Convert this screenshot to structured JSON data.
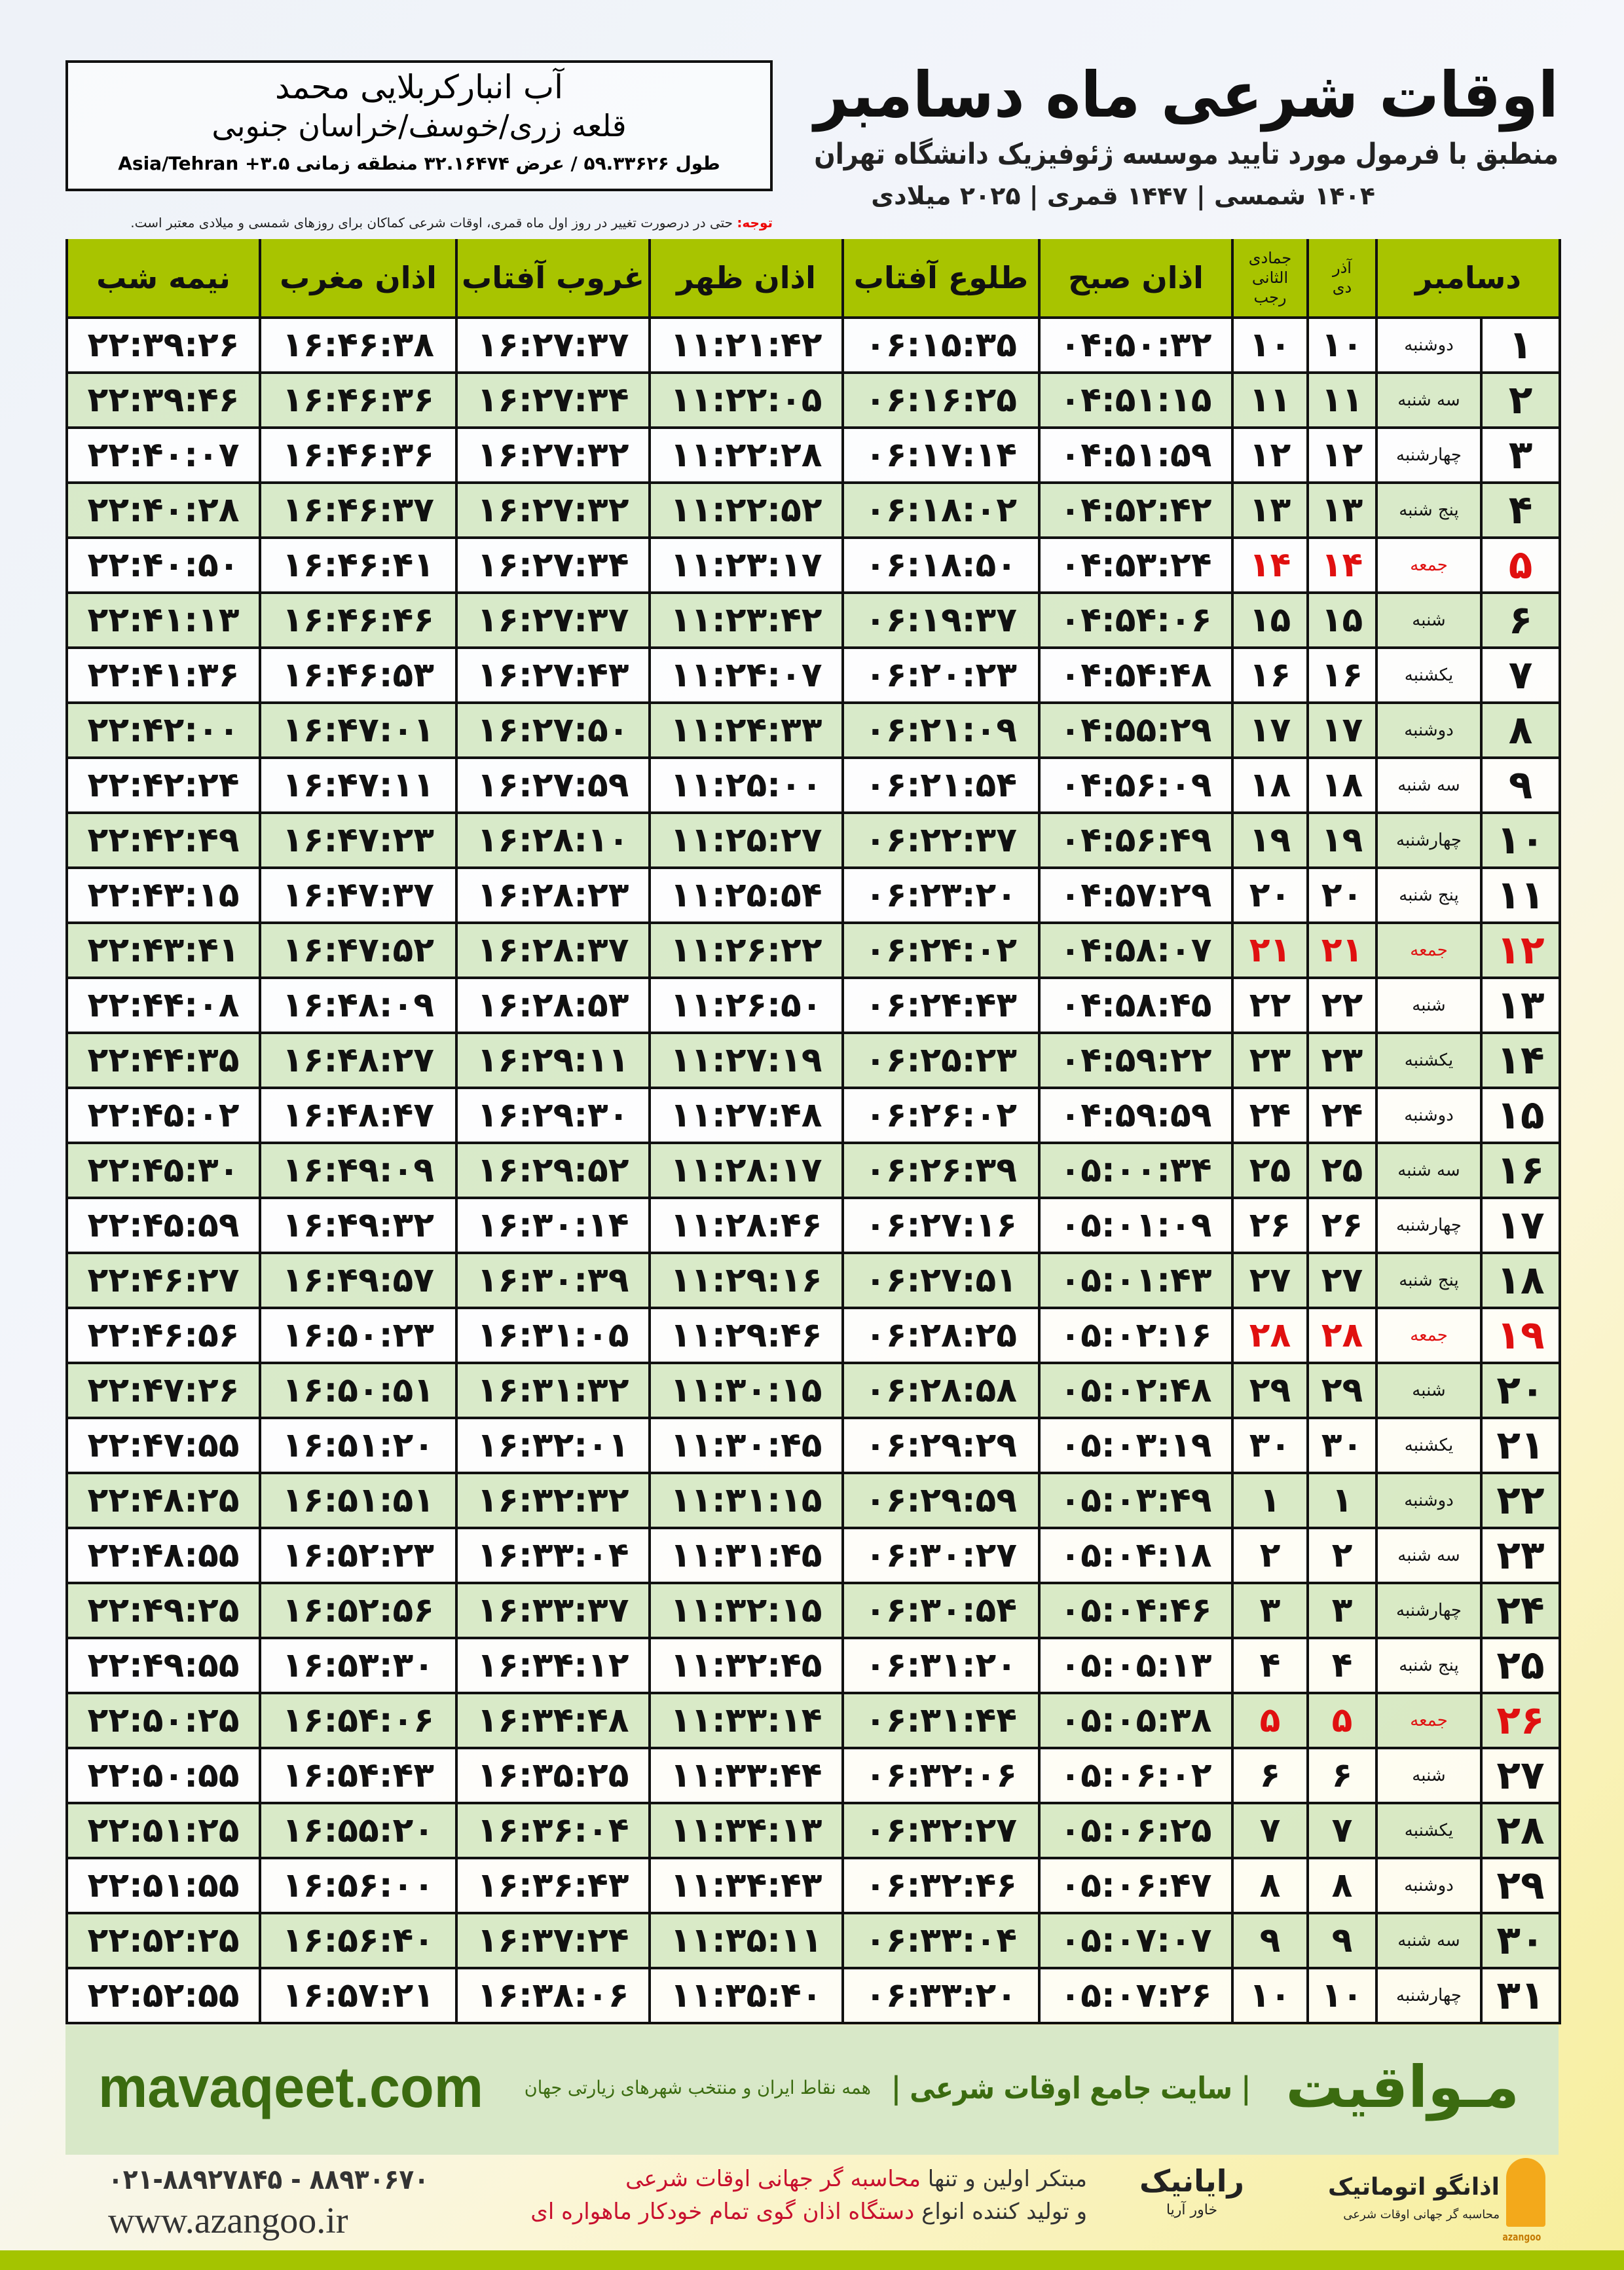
{
  "header": {
    "title": "اوقات شرعی ماه دسامبر",
    "subtitle": "منطبق با فرمول مورد تایید موسسه ژئوفیزیک دانشگاه تهران",
    "dates": "۱۴۰۴ شمسی | ۱۴۴۷ قمری | ۲۰۲۵ میلادی"
  },
  "location": {
    "name": "آب انبارکربلایی محمد",
    "region": "قلعه زری/خوسف/خراسان جنوبی",
    "coords": "طول ۵۹.۳۳۶۲۶ / عرض ۳۲.۱۶۴۷۴ منطقه زمانی ۳.۵+ Asia/Tehran"
  },
  "note": {
    "label": "توجه:",
    "text": " حتی در درصورت تغییر در روز اول ماه قمری، اوقات شرعی کماکان برای روزهای شمسی و میلادی معتبر است."
  },
  "table": {
    "headers": {
      "month": "دسامبر",
      "shamsi_top": "آذر",
      "shamsi_bottom": "دی",
      "hijri_top": "جمادی الثانی",
      "hijri_bottom": "رجب",
      "fajr": "اذان صبح",
      "sunrise": "طلوع آفتاب",
      "dhuhr": "اذان ظهر",
      "sunset": "غروب آفتاب",
      "maghrib": "اذان مغرب",
      "midnight": "نیمه شب"
    },
    "rows": [
      [
        "۱",
        "دوشنبه",
        "۱۰",
        "۱۰",
        "۰۴:۵۰:۳۲",
        "۰۶:۱۵:۳۵",
        "۱۱:۲۱:۴۲",
        "۱۶:۲۷:۳۷",
        "۱۶:۴۶:۳۸",
        "۲۲:۳۹:۲۶"
      ],
      [
        "۲",
        "سه شنبه",
        "۱۱",
        "۱۱",
        "۰۴:۵۱:۱۵",
        "۰۶:۱۶:۲۵",
        "۱۱:۲۲:۰۵",
        "۱۶:۲۷:۳۴",
        "۱۶:۴۶:۳۶",
        "۲۲:۳۹:۴۶"
      ],
      [
        "۳",
        "چهارشنبه",
        "۱۲",
        "۱۲",
        "۰۴:۵۱:۵۹",
        "۰۶:۱۷:۱۴",
        "۱۱:۲۲:۲۸",
        "۱۶:۲۷:۳۲",
        "۱۶:۴۶:۳۶",
        "۲۲:۴۰:۰۷"
      ],
      [
        "۴",
        "پنج شنبه",
        "۱۳",
        "۱۳",
        "۰۴:۵۲:۴۲",
        "۰۶:۱۸:۰۲",
        "۱۱:۲۲:۵۲",
        "۱۶:۲۷:۳۲",
        "۱۶:۴۶:۳۷",
        "۲۲:۴۰:۲۸"
      ],
      [
        "۵",
        "جمعه",
        "۱۴",
        "۱۴",
        "۰۴:۵۳:۲۴",
        "۰۶:۱۸:۵۰",
        "۱۱:۲۳:۱۷",
        "۱۶:۲۷:۳۴",
        "۱۶:۴۶:۴۱",
        "۲۲:۴۰:۵۰"
      ],
      [
        "۶",
        "شنبه",
        "۱۵",
        "۱۵",
        "۰۴:۵۴:۰۶",
        "۰۶:۱۹:۳۷",
        "۱۱:۲۳:۴۲",
        "۱۶:۲۷:۳۷",
        "۱۶:۴۶:۴۶",
        "۲۲:۴۱:۱۳"
      ],
      [
        "۷",
        "یکشنبه",
        "۱۶",
        "۱۶",
        "۰۴:۵۴:۴۸",
        "۰۶:۲۰:۲۳",
        "۱۱:۲۴:۰۷",
        "۱۶:۲۷:۴۳",
        "۱۶:۴۶:۵۳",
        "۲۲:۴۱:۳۶"
      ],
      [
        "۸",
        "دوشنبه",
        "۱۷",
        "۱۷",
        "۰۴:۵۵:۲۹",
        "۰۶:۲۱:۰۹",
        "۱۱:۲۴:۳۳",
        "۱۶:۲۷:۵۰",
        "۱۶:۴۷:۰۱",
        "۲۲:۴۲:۰۰"
      ],
      [
        "۹",
        "سه شنبه",
        "۱۸",
        "۱۸",
        "۰۴:۵۶:۰۹",
        "۰۶:۲۱:۵۴",
        "۱۱:۲۵:۰۰",
        "۱۶:۲۷:۵۹",
        "۱۶:۴۷:۱۱",
        "۲۲:۴۲:۲۴"
      ],
      [
        "۱۰",
        "چهارشنبه",
        "۱۹",
        "۱۹",
        "۰۴:۵۶:۴۹",
        "۰۶:۲۲:۳۷",
        "۱۱:۲۵:۲۷",
        "۱۶:۲۸:۱۰",
        "۱۶:۴۷:۲۳",
        "۲۲:۴۲:۴۹"
      ],
      [
        "۱۱",
        "پنج شنبه",
        "۲۰",
        "۲۰",
        "۰۴:۵۷:۲۹",
        "۰۶:۲۳:۲۰",
        "۱۱:۲۵:۵۴",
        "۱۶:۲۸:۲۳",
        "۱۶:۴۷:۳۷",
        "۲۲:۴۳:۱۵"
      ],
      [
        "۱۲",
        "جمعه",
        "۲۱",
        "۲۱",
        "۰۴:۵۸:۰۷",
        "۰۶:۲۴:۰۲",
        "۱۱:۲۶:۲۲",
        "۱۶:۲۸:۳۷",
        "۱۶:۴۷:۵۲",
        "۲۲:۴۳:۴۱"
      ],
      [
        "۱۳",
        "شنبه",
        "۲۲",
        "۲۲",
        "۰۴:۵۸:۴۵",
        "۰۶:۲۴:۴۳",
        "۱۱:۲۶:۵۰",
        "۱۶:۲۸:۵۳",
        "۱۶:۴۸:۰۹",
        "۲۲:۴۴:۰۸"
      ],
      [
        "۱۴",
        "یکشنبه",
        "۲۳",
        "۲۳",
        "۰۴:۵۹:۲۲",
        "۰۶:۲۵:۲۳",
        "۱۱:۲۷:۱۹",
        "۱۶:۲۹:۱۱",
        "۱۶:۴۸:۲۷",
        "۲۲:۴۴:۳۵"
      ],
      [
        "۱۵",
        "دوشنبه",
        "۲۴",
        "۲۴",
        "۰۴:۵۹:۵۹",
        "۰۶:۲۶:۰۲",
        "۱۱:۲۷:۴۸",
        "۱۶:۲۹:۳۰",
        "۱۶:۴۸:۴۷",
        "۲۲:۴۵:۰۲"
      ],
      [
        "۱۶",
        "سه شنبه",
        "۲۵",
        "۲۵",
        "۰۵:۰۰:۳۴",
        "۰۶:۲۶:۳۹",
        "۱۱:۲۸:۱۷",
        "۱۶:۲۹:۵۲",
        "۱۶:۴۹:۰۹",
        "۲۲:۴۵:۳۰"
      ],
      [
        "۱۷",
        "چهارشنبه",
        "۲۶",
        "۲۶",
        "۰۵:۰۱:۰۹",
        "۰۶:۲۷:۱۶",
        "۱۱:۲۸:۴۶",
        "۱۶:۳۰:۱۴",
        "۱۶:۴۹:۳۲",
        "۲۲:۴۵:۵۹"
      ],
      [
        "۱۸",
        "پنج شنبه",
        "۲۷",
        "۲۷",
        "۰۵:۰۱:۴۳",
        "۰۶:۲۷:۵۱",
        "۱۱:۲۹:۱۶",
        "۱۶:۳۰:۳۹",
        "۱۶:۴۹:۵۷",
        "۲۲:۴۶:۲۷"
      ],
      [
        "۱۹",
        "جمعه",
        "۲۸",
        "۲۸",
        "۰۵:۰۲:۱۶",
        "۰۶:۲۸:۲۵",
        "۱۱:۲۹:۴۶",
        "۱۶:۳۱:۰۵",
        "۱۶:۵۰:۲۳",
        "۲۲:۴۶:۵۶"
      ],
      [
        "۲۰",
        "شنبه",
        "۲۹",
        "۲۹",
        "۰۵:۰۲:۴۸",
        "۰۶:۲۸:۵۸",
        "۱۱:۳۰:۱۵",
        "۱۶:۳۱:۳۲",
        "۱۶:۵۰:۵۱",
        "۲۲:۴۷:۲۶"
      ],
      [
        "۲۱",
        "یکشنبه",
        "۳۰",
        "۳۰",
        "۰۵:۰۳:۱۹",
        "۰۶:۲۹:۲۹",
        "۱۱:۳۰:۴۵",
        "۱۶:۳۲:۰۱",
        "۱۶:۵۱:۲۰",
        "۲۲:۴۷:۵۵"
      ],
      [
        "۲۲",
        "دوشنبه",
        "۱",
        "۱",
        "۰۵:۰۳:۴۹",
        "۰۶:۲۹:۵۹",
        "۱۱:۳۱:۱۵",
        "۱۶:۳۲:۳۲",
        "۱۶:۵۱:۵۱",
        "۲۲:۴۸:۲۵"
      ],
      [
        "۲۳",
        "سه شنبه",
        "۲",
        "۲",
        "۰۵:۰۴:۱۸",
        "۰۶:۳۰:۲۷",
        "۱۱:۳۱:۴۵",
        "۱۶:۳۳:۰۴",
        "۱۶:۵۲:۲۳",
        "۲۲:۴۸:۵۵"
      ],
      [
        "۲۴",
        "چهارشنبه",
        "۳",
        "۳",
        "۰۵:۰۴:۴۶",
        "۰۶:۳۰:۵۴",
        "۱۱:۳۲:۱۵",
        "۱۶:۳۳:۳۷",
        "۱۶:۵۲:۵۶",
        "۲۲:۴۹:۲۵"
      ],
      [
        "۲۵",
        "پنج شنبه",
        "۴",
        "۴",
        "۰۵:۰۵:۱۳",
        "۰۶:۳۱:۲۰",
        "۱۱:۳۲:۴۵",
        "۱۶:۳۴:۱۲",
        "۱۶:۵۳:۳۰",
        "۲۲:۴۹:۵۵"
      ],
      [
        "۲۶",
        "جمعه",
        "۵",
        "۵",
        "۰۵:۰۵:۳۸",
        "۰۶:۳۱:۴۴",
        "۱۱:۳۳:۱۴",
        "۱۶:۳۴:۴۸",
        "۱۶:۵۴:۰۶",
        "۲۲:۵۰:۲۵"
      ],
      [
        "۲۷",
        "شنبه",
        "۶",
        "۶",
        "۰۵:۰۶:۰۲",
        "۰۶:۳۲:۰۶",
        "۱۱:۳۳:۴۴",
        "۱۶:۳۵:۲۵",
        "۱۶:۵۴:۴۳",
        "۲۲:۵۰:۵۵"
      ],
      [
        "۲۸",
        "یکشنبه",
        "۷",
        "۷",
        "۰۵:۰۶:۲۵",
        "۰۶:۳۲:۲۷",
        "۱۱:۳۴:۱۳",
        "۱۶:۳۶:۰۴",
        "۱۶:۵۵:۲۰",
        "۲۲:۵۱:۲۵"
      ],
      [
        "۲۹",
        "دوشنبه",
        "۸",
        "۸",
        "۰۵:۰۶:۴۷",
        "۰۶:۳۲:۴۶",
        "۱۱:۳۴:۴۳",
        "۱۶:۳۶:۴۳",
        "۱۶:۵۶:۰۰",
        "۲۲:۵۱:۵۵"
      ],
      [
        "۳۰",
        "سه شنبه",
        "۹",
        "۹",
        "۰۵:۰۷:۰۷",
        "۰۶:۳۳:۰۴",
        "۱۱:۳۵:۱۱",
        "۱۶:۳۷:۲۴",
        "۱۶:۵۶:۴۰",
        "۲۲:۵۲:۲۵"
      ],
      [
        "۳۱",
        "چهارشنبه",
        "۱۰",
        "۱۰",
        "۰۵:۰۷:۲۶",
        "۰۶:۳۳:۲۰",
        "۱۱:۳۵:۴۰",
        "۱۶:۳۸:۰۶",
        "۱۶:۵۷:۲۱",
        "۲۲:۵۲:۵۵"
      ]
    ]
  },
  "footer": {
    "logo": "مـواقیت",
    "tagline": "| سایت جامع اوقات شرعی |",
    "tagline2": "همه نقاط ایران و منتخب شهرهای زیارتی جهان",
    "url": "mavaqeet.com",
    "phone": "۰۲۱-۸۸۹۲۷۸۴۵ - ۸۸۹۳۰۶۷۰",
    "web": "www.azangoo.ir",
    "promo1a": "مبتکر اولین و تنها ",
    "promo1b": "محاسبه گر جهانی اوقات شرعی",
    "promo2a": "و تولید کننده انواع ",
    "promo2b": "دستگاه اذان گوی تمام خودکار ماهواره ای",
    "raynik": "رایانیک",
    "raynik_sub": "خاور آریا",
    "azangoo": "اذانگو اتوماتیک",
    "azangoo_sub": "محاسبه گر جهانی اوقات شرعی",
    "azangoo_en": "azangoo"
  },
  "colors": {
    "header_green": "#a8c400",
    "row_green": "#d6e8c4",
    "friday_red": "#e01010",
    "brand_green": "#3b6b10"
  }
}
